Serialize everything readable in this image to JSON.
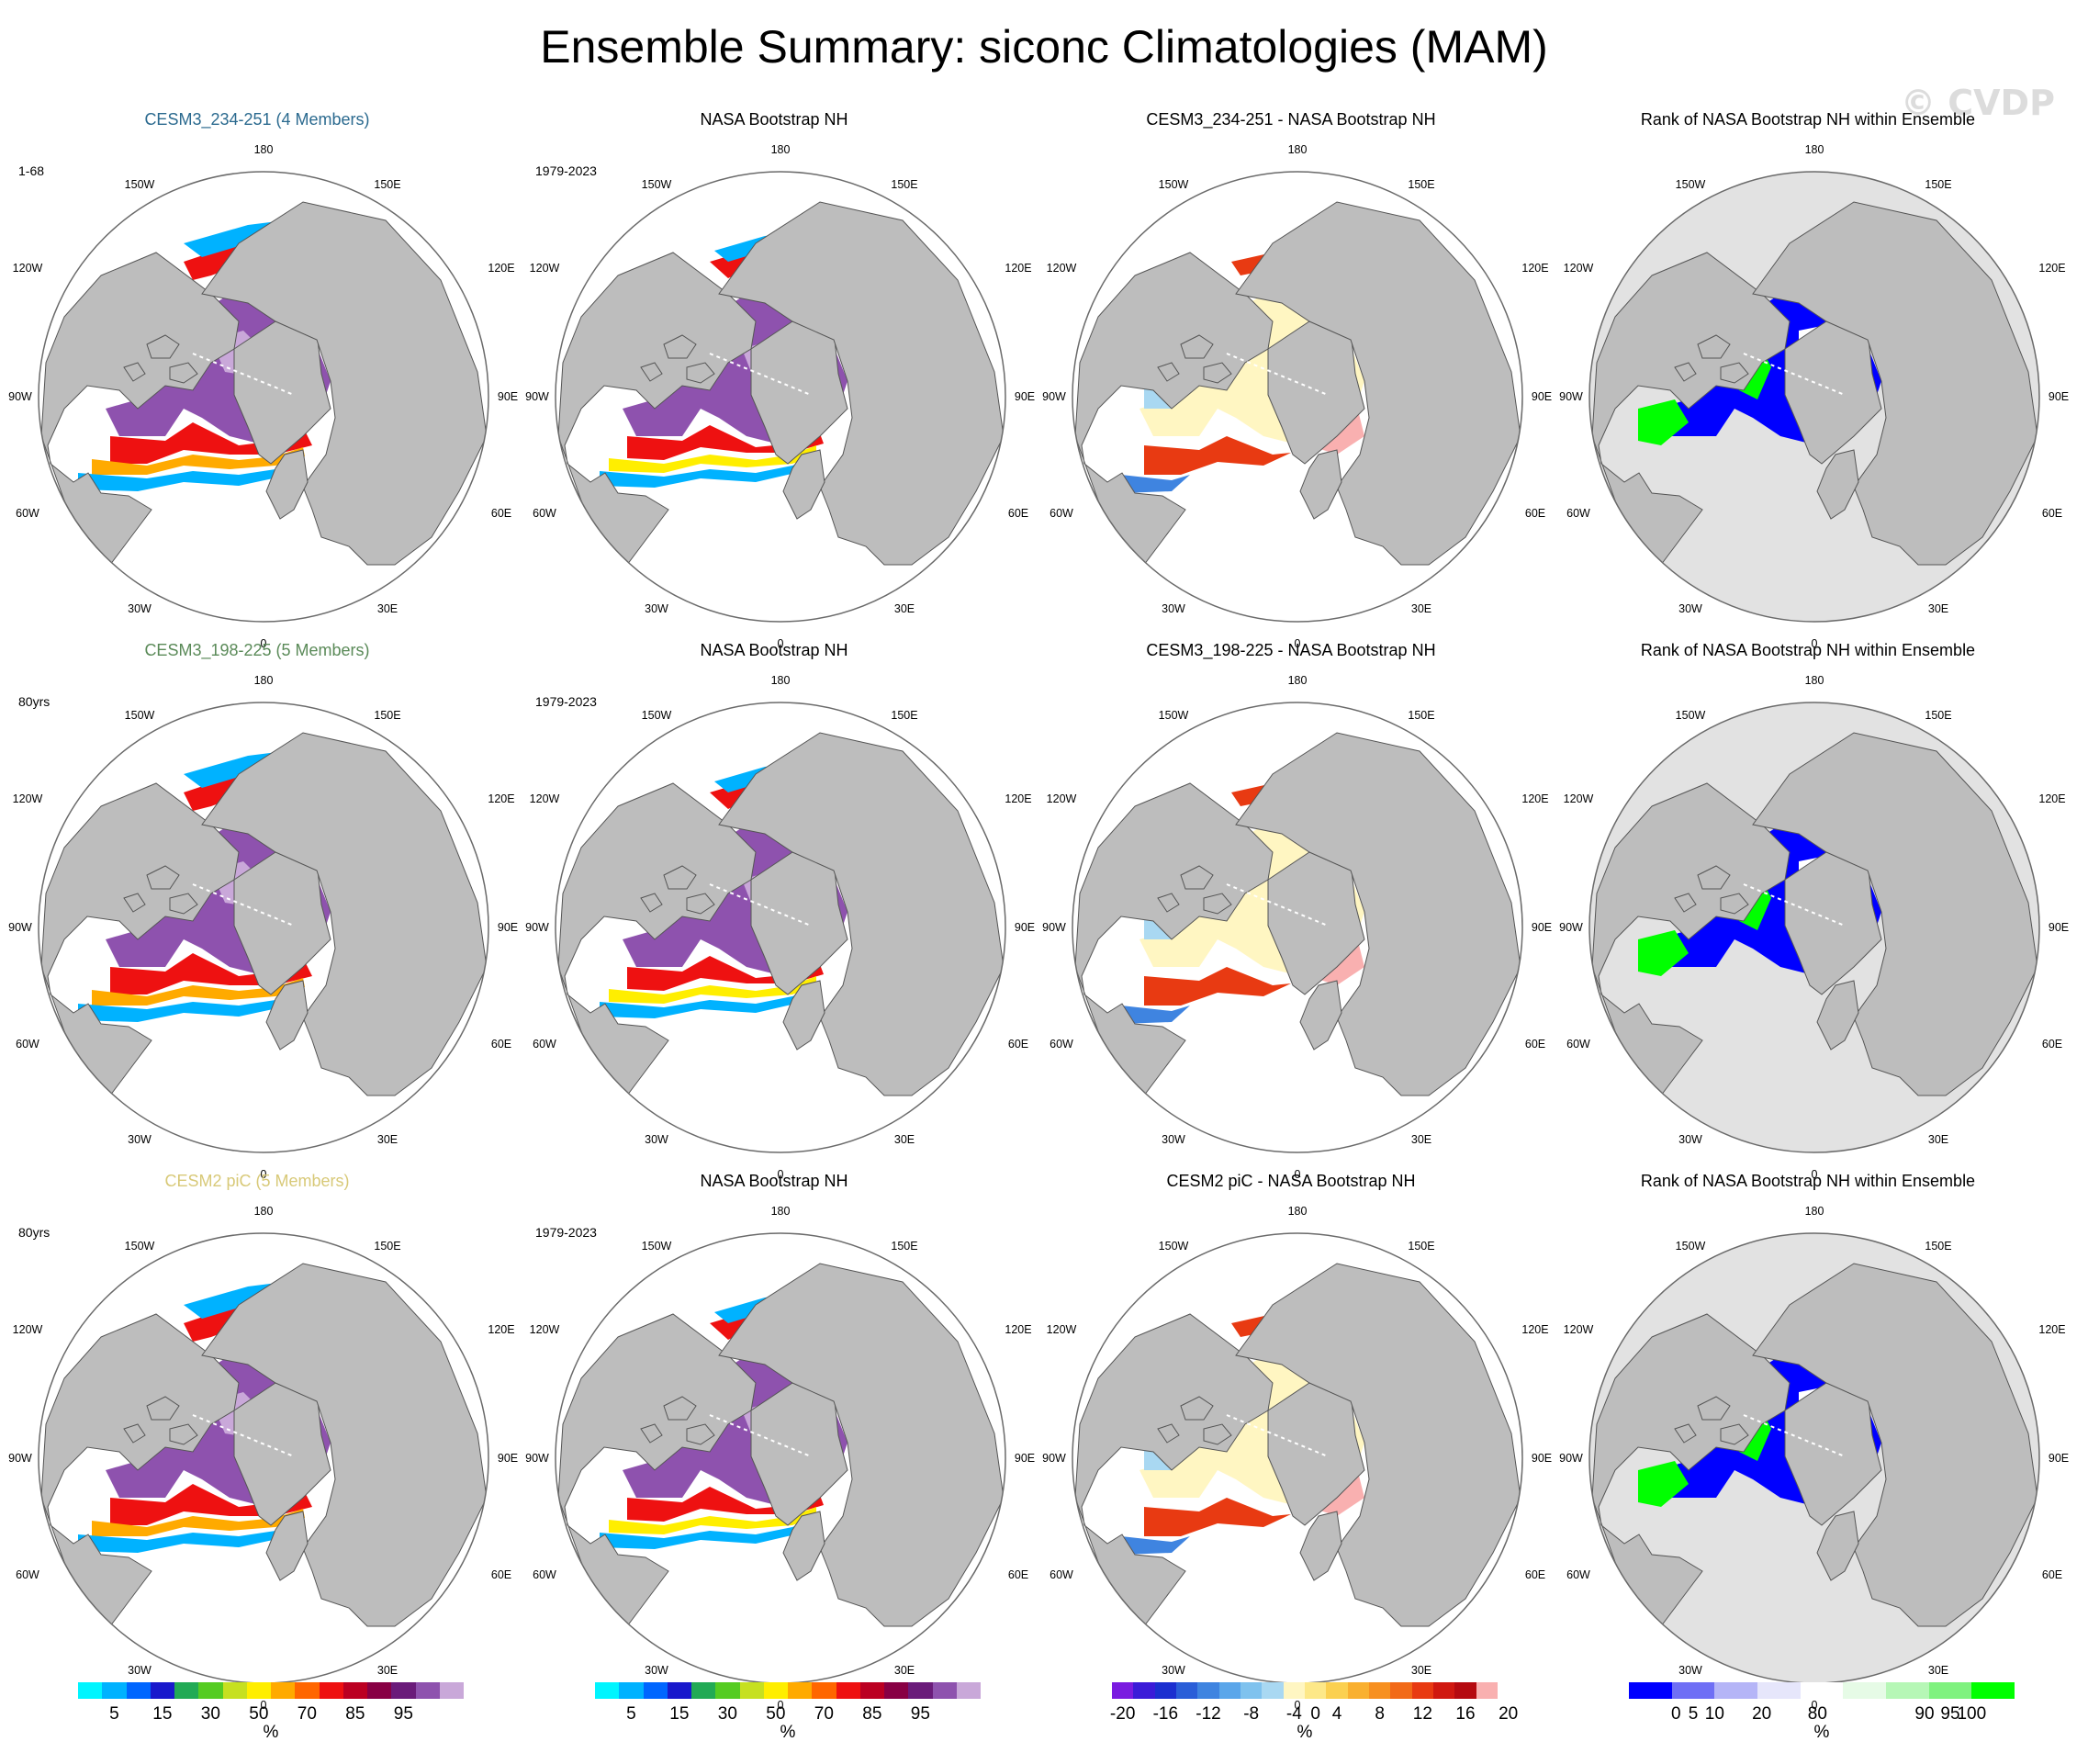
{
  "title": "Ensemble Summary: siconc Climatologies (MAM)",
  "watermark": "© CVDP",
  "colors": {
    "land": "#bdbdbd",
    "ocean": "#ffffff",
    "grid": "#9a9a9a",
    "row_title_colors": [
      "#2b6a8f",
      "#5a8a58",
      "#d8c978"
    ]
  },
  "map_labels": {
    "top": "180",
    "bottom": "0",
    "upper_left": "150W",
    "upper_right": "150E",
    "left_upper": "120W",
    "right_upper": "120E",
    "left": "90W",
    "right": "90E",
    "left_lower": "60W",
    "right_lower": "60E",
    "lower_left": "30W",
    "lower_right": "30E"
  },
  "rows": [
    {
      "panels": [
        {
          "title": "CESM3_234-251 (4 Members)",
          "period": "1-68",
          "kind": "siconc"
        },
        {
          "title": "NASA Bootstrap NH",
          "period": "1979-2023",
          "kind": "siconc_obs"
        },
        {
          "title": "CESM3_234-251 - NASA Bootstrap NH",
          "period": "",
          "kind": "diff"
        },
        {
          "title": "Rank of NASA Bootstrap NH within Ensemble",
          "period": "",
          "kind": "rank"
        }
      ]
    },
    {
      "panels": [
        {
          "title": "CESM3_198-225 (5 Members)",
          "period": "80yrs",
          "kind": "siconc"
        },
        {
          "title": "NASA Bootstrap NH",
          "period": "1979-2023",
          "kind": "siconc_obs"
        },
        {
          "title": "CESM3_198-225 - NASA Bootstrap NH",
          "period": "",
          "kind": "diff"
        },
        {
          "title": "Rank of NASA Bootstrap NH within Ensemble",
          "period": "",
          "kind": "rank"
        }
      ]
    },
    {
      "panels": [
        {
          "title": "CESM2 piC (5 Members)",
          "period": "80yrs",
          "kind": "siconc"
        },
        {
          "title": "NASA Bootstrap NH",
          "period": "1979-2023",
          "kind": "siconc_obs"
        },
        {
          "title": "CESM2 piC - NASA Bootstrap NH",
          "period": "",
          "kind": "diff"
        },
        {
          "title": "Rank of NASA Bootstrap NH within Ensemble",
          "period": "",
          "kind": "rank"
        }
      ]
    }
  ],
  "colorbars": [
    {
      "name": "siconc-colorbar-model",
      "unit": "%",
      "colors": [
        "#00f5ff",
        "#00b2ff",
        "#0066ff",
        "#1919cc",
        "#22aa55",
        "#55cc22",
        "#c6e020",
        "#ffee00",
        "#ffaa00",
        "#ff6600",
        "#ee1111",
        "#bb0022",
        "#880044",
        "#6a1b7a",
        "#8e52ae",
        "#c9a8d9"
      ],
      "ticks": [
        "5",
        "15",
        "30",
        "50",
        "70",
        "85",
        "95"
      ],
      "tick_slots": [
        1,
        3,
        5,
        7,
        9,
        11,
        13
      ]
    },
    {
      "name": "siconc-colorbar-obs",
      "unit": "%",
      "colors": [
        "#00f5ff",
        "#00b2ff",
        "#0066ff",
        "#1919cc",
        "#22aa55",
        "#55cc22",
        "#c6e020",
        "#ffee00",
        "#ffaa00",
        "#ff6600",
        "#ee1111",
        "#bb0022",
        "#880044",
        "#6a1b7a",
        "#8e52ae",
        "#c9a8d9"
      ],
      "ticks": [
        "5",
        "15",
        "30",
        "50",
        "70",
        "85",
        "95"
      ],
      "tick_slots": [
        1,
        3,
        5,
        7,
        9,
        11,
        13
      ]
    },
    {
      "name": "diff-colorbar",
      "unit": "%",
      "colors": [
        "#7a1be0",
        "#3b1bd8",
        "#1b2fd0",
        "#2a5ed8",
        "#3f84e0",
        "#5aa6ea",
        "#7fc2ee",
        "#a9d8f2",
        "#fff6c2",
        "#fde888",
        "#fbd050",
        "#f9b030",
        "#f79020",
        "#f26a18",
        "#e83a12",
        "#d01810",
        "#b50a10",
        "#f9b0b0"
      ],
      "ticks": [
        "-20",
        "-16",
        "-12",
        "-8",
        "-4",
        "0",
        "4",
        "8",
        "12",
        "16",
        "20"
      ],
      "tick_slots": [
        0,
        2,
        4,
        6,
        8,
        9,
        10,
        12,
        14,
        16,
        18
      ]
    },
    {
      "name": "rank-colorbar",
      "unit": "%",
      "colors": [
        "#0000ff",
        "#6f6ff5",
        "#b5b5f7",
        "#e6e6fb",
        "#ffffff",
        "#e6fbe6",
        "#b6f7b6",
        "#7ff27f",
        "#00ff00"
      ],
      "ticks": [
        "0",
        "5",
        "10",
        "20",
        "80",
        "90",
        "95",
        "100"
      ],
      "tick_slots": [
        0.6,
        1,
        1.5,
        2.6,
        3.9,
        6.4,
        7,
        7.5
      ]
    }
  ]
}
